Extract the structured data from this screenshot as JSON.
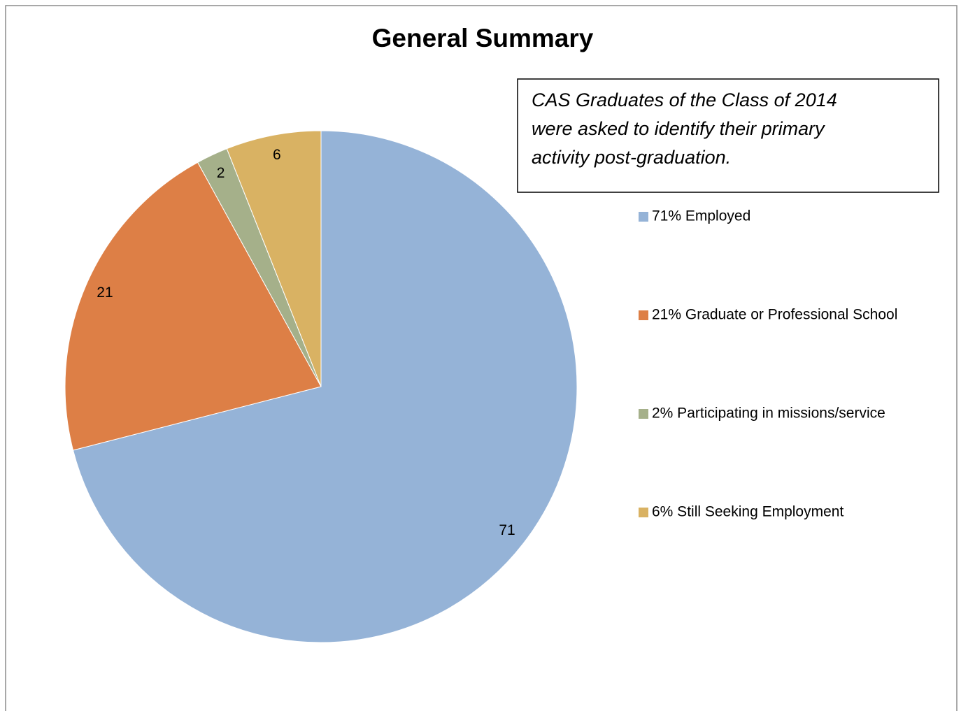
{
  "chart_data": {
    "type": "pie",
    "title": "General Summary",
    "annotation": [
      "CAS Graduates of the Class of 2014",
      "were asked to identify their primary",
      "activity post-graduation."
    ],
    "categories": [
      "71% Employed",
      "21% Graduate or Professional School",
      "2% Participating in missions/service",
      "6% Still Seeking Employment"
    ],
    "values": [
      71,
      21,
      2,
      6
    ],
    "colors": [
      "#95b3d7",
      "#dd7f46",
      "#a5b08a",
      "#d9b263"
    ],
    "legend": "right"
  }
}
